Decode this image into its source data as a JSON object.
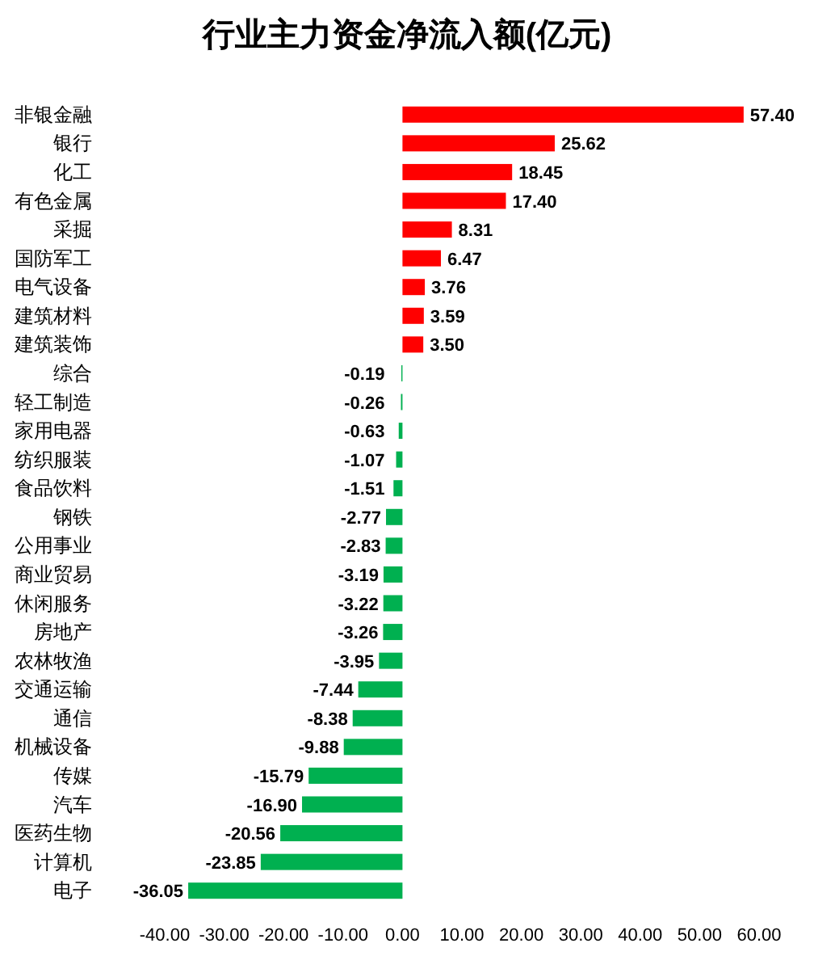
{
  "chart_data": {
    "type": "bar",
    "orientation": "horizontal",
    "title": "行业主力资金净流入额(亿元)",
    "categories": [
      "非银金融",
      "银行",
      "化工",
      "有色金属",
      "采掘",
      "国防军工",
      "电气设备",
      "建筑材料",
      "建筑装饰",
      "综合",
      "轻工制造",
      "家用电器",
      "纺织服装",
      "食品饮料",
      "钢铁",
      "公用事业",
      "商业贸易",
      "休闲服务",
      "房地产",
      "农林牧渔",
      "交通运输",
      "通信",
      "机械设备",
      "传媒",
      "汽车",
      "医药生物",
      "计算机",
      "电子"
    ],
    "values": [
      57.4,
      25.62,
      18.45,
      17.4,
      8.31,
      6.47,
      3.76,
      3.59,
      3.5,
      -0.19,
      -0.26,
      -0.63,
      -1.07,
      -1.51,
      -2.77,
      -2.83,
      -3.19,
      -3.22,
      -3.26,
      -3.95,
      -7.44,
      -8.38,
      -9.88,
      -15.79,
      -16.9,
      -20.56,
      -23.85,
      -36.05
    ],
    "value_labels": [
      "57.40",
      "25.62",
      "18.45",
      "17.40",
      "8.31",
      "6.47",
      "3.76",
      "3.59",
      "3.50",
      "-0.19",
      "-0.26",
      "-0.63",
      "-1.07",
      "-1.51",
      "-2.77",
      "-2.83",
      "-3.19",
      "-3.22",
      "-3.26",
      "-3.95",
      "-7.44",
      "-8.38",
      "-9.88",
      "-15.79",
      "-16.90",
      "-20.56",
      "-23.85",
      "-36.05"
    ],
    "colors": [
      "#ff0000",
      "#ff0000",
      "#ff0000",
      "#ff0000",
      "#ff0000",
      "#ff0000",
      "#ff0000",
      "#ff0000",
      "#ff0000",
      "#00b050",
      "#00b050",
      "#00b050",
      "#00b050",
      "#00b050",
      "#00b050",
      "#00b050",
      "#00b050",
      "#00b050",
      "#00b050",
      "#00b050",
      "#00b050",
      "#00b050",
      "#00b050",
      "#00b050",
      "#00b050",
      "#00b050",
      "#00b050",
      "#00b050"
    ],
    "xlim": [
      -40,
      60
    ],
    "xticks": [
      {
        "value": -40,
        "label": "-40.00"
      },
      {
        "value": -30,
        "label": "-30.00"
      },
      {
        "value": -20,
        "label": "-20.00"
      },
      {
        "value": -10,
        "label": "-10.00"
      },
      {
        "value": 0,
        "label": "0.00"
      },
      {
        "value": 10,
        "label": "10.00"
      },
      {
        "value": 20,
        "label": "20.00"
      },
      {
        "value": 30,
        "label": "30.00"
      },
      {
        "value": 40,
        "label": "40.00"
      },
      {
        "value": 50,
        "label": "50.00"
      },
      {
        "value": 60,
        "label": "60.00"
      }
    ],
    "grid": false
  }
}
